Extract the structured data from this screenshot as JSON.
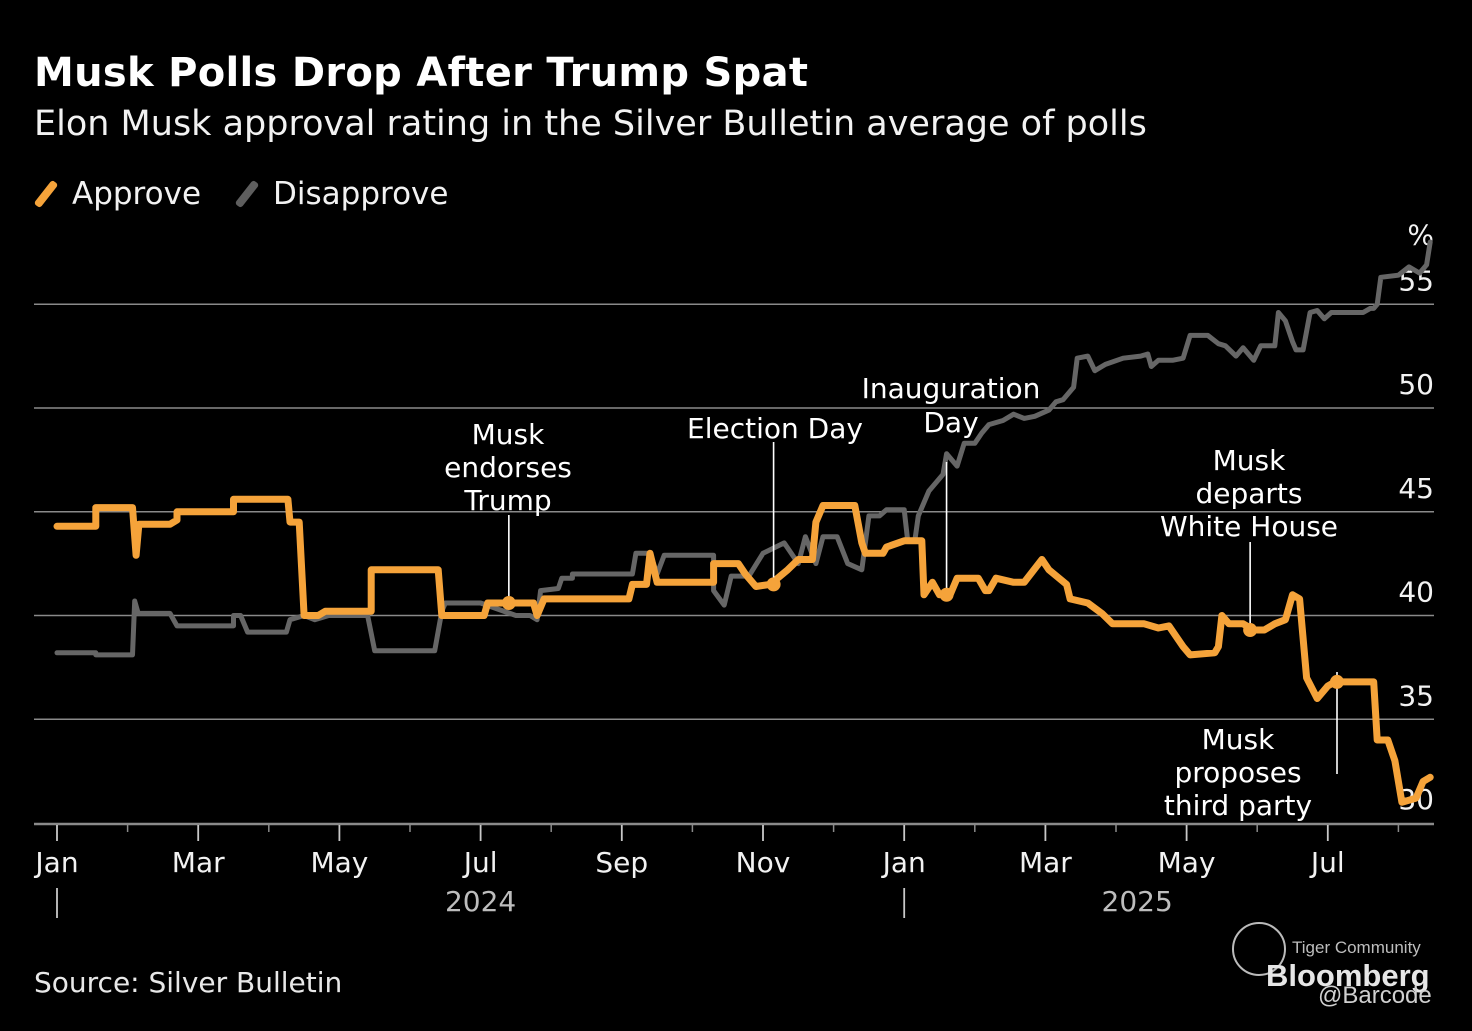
{
  "header": {
    "title": "Musk Polls Drop After Trump Spat",
    "subtitle": "Elon Musk approval rating in the Silver Bulletin average of polls"
  },
  "legend": [
    {
      "label": "Approve",
      "color": "#f5a33a",
      "icon": "slash-swatch"
    },
    {
      "label": "Disapprove",
      "color": "#666666",
      "icon": "slash-swatch"
    }
  ],
  "footer": {
    "source": "Source: Silver Bulletin",
    "watermark_community": "Tiger Community",
    "watermark_brand": "Bloomberg",
    "watermark_handle": "@Barcode"
  },
  "chart_data": {
    "type": "line",
    "title": "Musk Polls Drop After Trump Spat",
    "subtitle": "Elon Musk approval rating in the Silver Bulletin average of polls",
    "xlabel": "",
    "ylabel": "%",
    "unit_label": "%",
    "x_unit": "months since Jan 2024",
    "xlim": [
      0,
      19.5
    ],
    "ylim": [
      29,
      57
    ],
    "y_ticks": [
      30,
      35,
      40,
      45,
      50,
      55
    ],
    "grid": true,
    "legend_position": "top-left",
    "x_ticks": [
      {
        "m": 0,
        "label": "Jan"
      },
      {
        "m": 2,
        "label": "Mar"
      },
      {
        "m": 4,
        "label": "May"
      },
      {
        "m": 6,
        "label": "Jul"
      },
      {
        "m": 8,
        "label": "Sep"
      },
      {
        "m": 10,
        "label": "Nov"
      },
      {
        "m": 12,
        "label": "Jan"
      },
      {
        "m": 14,
        "label": "Mar"
      },
      {
        "m": 16,
        "label": "May"
      },
      {
        "m": 18,
        "label": "Jul"
      }
    ],
    "minor_ticks": [
      1,
      3,
      5,
      7,
      9,
      11,
      13,
      15,
      17,
      19
    ],
    "years": [
      {
        "m": 0,
        "label": "2024",
        "label_m": 6
      },
      {
        "m": 12,
        "label": "2025",
        "label_m": 15.3
      }
    ],
    "series": [
      {
        "name": "Approve",
        "color": "#f5a33a",
        "points": [
          [
            0.0,
            44.3
          ],
          [
            0.55,
            44.3
          ],
          [
            0.55,
            45.2
          ],
          [
            1.07,
            45.2
          ],
          [
            1.12,
            42.9
          ],
          [
            1.16,
            44.4
          ],
          [
            1.6,
            44.4
          ],
          [
            1.7,
            44.6
          ],
          [
            1.7,
            45.0
          ],
          [
            2.5,
            45.0
          ],
          [
            2.5,
            45.6
          ],
          [
            3.27,
            45.6
          ],
          [
            3.3,
            44.5
          ],
          [
            3.43,
            44.5
          ],
          [
            3.5,
            40.0
          ],
          [
            3.7,
            40.0
          ],
          [
            3.8,
            40.2
          ],
          [
            4.45,
            40.2
          ],
          [
            4.45,
            42.2
          ],
          [
            5.4,
            42.2
          ],
          [
            5.45,
            40.0
          ],
          [
            6.05,
            40.0
          ],
          [
            6.1,
            40.6
          ],
          [
            6.4,
            40.6
          ],
          [
            6.55,
            40.6
          ],
          [
            6.75,
            40.6
          ],
          [
            6.8,
            40.0
          ],
          [
            6.9,
            40.8
          ],
          [
            8.1,
            40.8
          ],
          [
            8.15,
            41.5
          ],
          [
            8.35,
            41.5
          ],
          [
            8.4,
            43.0
          ],
          [
            8.5,
            41.6
          ],
          [
            9.3,
            41.6
          ],
          [
            9.3,
            42.5
          ],
          [
            9.65,
            42.5
          ],
          [
            9.75,
            42.0
          ],
          [
            9.9,
            41.4
          ],
          [
            10.1,
            41.5
          ],
          [
            10.35,
            42.2
          ],
          [
            10.5,
            42.7
          ],
          [
            10.7,
            42.7
          ],
          [
            10.75,
            44.5
          ],
          [
            10.85,
            45.3
          ],
          [
            11.3,
            45.3
          ],
          [
            11.4,
            43.5
          ],
          [
            11.45,
            43.0
          ],
          [
            11.7,
            43.0
          ],
          [
            11.75,
            43.3
          ],
          [
            12.0,
            43.6
          ],
          [
            12.25,
            43.6
          ],
          [
            12.28,
            41.0
          ],
          [
            12.4,
            41.6
          ],
          [
            12.5,
            41.0
          ],
          [
            12.65,
            41.0
          ],
          [
            12.75,
            41.8
          ],
          [
            13.05,
            41.8
          ],
          [
            13.15,
            41.2
          ],
          [
            13.2,
            41.2
          ],
          [
            13.3,
            41.8
          ],
          [
            13.55,
            41.6
          ],
          [
            13.7,
            41.6
          ],
          [
            13.95,
            42.7
          ],
          [
            14.05,
            42.2
          ],
          [
            14.3,
            41.5
          ],
          [
            14.35,
            40.8
          ],
          [
            14.6,
            40.6
          ],
          [
            14.8,
            40.1
          ],
          [
            14.95,
            39.6
          ],
          [
            15.4,
            39.6
          ],
          [
            15.6,
            39.4
          ],
          [
            15.75,
            39.5
          ],
          [
            15.95,
            38.5
          ],
          [
            16.05,
            38.1
          ],
          [
            16.4,
            38.2
          ],
          [
            16.45,
            38.5
          ],
          [
            16.5,
            40.0
          ],
          [
            16.6,
            39.6
          ],
          [
            16.8,
            39.6
          ],
          [
            16.95,
            39.3
          ],
          [
            17.1,
            39.3
          ],
          [
            17.25,
            39.6
          ],
          [
            17.4,
            39.8
          ],
          [
            17.5,
            41.0
          ],
          [
            17.6,
            40.8
          ],
          [
            17.7,
            37.0
          ],
          [
            17.85,
            36.0
          ],
          [
            18.0,
            36.6
          ],
          [
            18.1,
            36.8
          ],
          [
            18.55,
            36.8
          ],
          [
            18.65,
            36.8
          ],
          [
            18.7,
            34.0
          ],
          [
            18.85,
            34.0
          ],
          [
            18.95,
            33.0
          ],
          [
            19.05,
            31.0
          ],
          [
            19.25,
            31.2
          ],
          [
            19.35,
            32.0
          ],
          [
            19.45,
            32.2
          ]
        ]
      },
      {
        "name": "Disapprove",
        "color": "#666666",
        "points": [
          [
            0.0,
            38.2
          ],
          [
            0.55,
            38.2
          ],
          [
            0.55,
            38.1
          ],
          [
            1.07,
            38.1
          ],
          [
            1.1,
            40.7
          ],
          [
            1.15,
            40.1
          ],
          [
            1.6,
            40.1
          ],
          [
            1.7,
            39.5
          ],
          [
            2.5,
            39.5
          ],
          [
            2.5,
            40.0
          ],
          [
            2.6,
            40.0
          ],
          [
            2.7,
            39.2
          ],
          [
            3.25,
            39.2
          ],
          [
            3.3,
            39.8
          ],
          [
            3.5,
            40.0
          ],
          [
            3.65,
            39.8
          ],
          [
            3.85,
            40.0
          ],
          [
            4.4,
            40.0
          ],
          [
            4.5,
            38.3
          ],
          [
            5.35,
            38.3
          ],
          [
            5.45,
            40.2
          ],
          [
            5.5,
            40.6
          ],
          [
            6.0,
            40.6
          ],
          [
            6.5,
            40.0
          ],
          [
            6.7,
            40.0
          ],
          [
            6.8,
            39.8
          ],
          [
            6.85,
            41.2
          ],
          [
            7.1,
            41.3
          ],
          [
            7.15,
            41.8
          ],
          [
            7.3,
            41.8
          ],
          [
            7.3,
            42.0
          ],
          [
            8.15,
            42.0
          ],
          [
            8.2,
            43.0
          ],
          [
            8.4,
            43.0
          ],
          [
            8.5,
            42.0
          ],
          [
            8.6,
            42.9
          ],
          [
            9.3,
            42.9
          ],
          [
            9.3,
            41.2
          ],
          [
            9.45,
            40.5
          ],
          [
            9.55,
            41.9
          ],
          [
            9.8,
            41.9
          ],
          [
            10.0,
            43.0
          ],
          [
            10.3,
            43.5
          ],
          [
            10.5,
            42.5
          ],
          [
            10.6,
            43.8
          ],
          [
            10.75,
            42.5
          ],
          [
            10.85,
            43.8
          ],
          [
            11.05,
            43.8
          ],
          [
            11.2,
            42.5
          ],
          [
            11.4,
            42.2
          ],
          [
            11.5,
            44.8
          ],
          [
            11.65,
            44.8
          ],
          [
            11.75,
            45.1
          ],
          [
            12.0,
            45.1
          ],
          [
            12.05,
            43.6
          ],
          [
            12.15,
            43.6
          ],
          [
            12.2,
            44.8
          ],
          [
            12.35,
            46.0
          ],
          [
            12.55,
            46.8
          ],
          [
            12.6,
            47.8
          ],
          [
            12.75,
            47.2
          ],
          [
            12.85,
            48.3
          ],
          [
            13.0,
            48.3
          ],
          [
            13.1,
            48.8
          ],
          [
            13.2,
            49.2
          ],
          [
            13.4,
            49.4
          ],
          [
            13.55,
            49.7
          ],
          [
            13.7,
            49.5
          ],
          [
            13.85,
            49.6
          ],
          [
            14.05,
            49.9
          ],
          [
            14.15,
            50.3
          ],
          [
            14.25,
            50.4
          ],
          [
            14.4,
            51.0
          ],
          [
            14.45,
            52.4
          ],
          [
            14.6,
            52.5
          ],
          [
            14.7,
            51.8
          ],
          [
            14.85,
            52.1
          ],
          [
            15.1,
            52.4
          ],
          [
            15.35,
            52.5
          ],
          [
            15.45,
            52.6
          ],
          [
            15.5,
            52.0
          ],
          [
            15.6,
            52.3
          ],
          [
            15.8,
            52.3
          ],
          [
            15.95,
            52.4
          ],
          [
            16.05,
            53.5
          ],
          [
            16.3,
            53.5
          ],
          [
            16.45,
            53.1
          ],
          [
            16.55,
            53.0
          ],
          [
            16.7,
            52.5
          ],
          [
            16.8,
            52.9
          ],
          [
            16.95,
            52.3
          ],
          [
            17.05,
            53.0
          ],
          [
            17.25,
            53.0
          ],
          [
            17.3,
            54.6
          ],
          [
            17.4,
            54.2
          ],
          [
            17.5,
            53.2
          ],
          [
            17.55,
            52.8
          ],
          [
            17.65,
            52.8
          ],
          [
            17.75,
            54.6
          ],
          [
            17.85,
            54.7
          ],
          [
            17.95,
            54.3
          ],
          [
            18.05,
            54.6
          ],
          [
            18.5,
            54.6
          ],
          [
            18.6,
            54.8
          ],
          [
            18.65,
            54.8
          ],
          [
            18.7,
            55.0
          ],
          [
            18.75,
            56.3
          ],
          [
            19.0,
            56.4
          ],
          [
            19.15,
            56.8
          ],
          [
            19.3,
            56.5
          ],
          [
            19.4,
            56.9
          ],
          [
            19.45,
            58.0
          ]
        ]
      }
    ],
    "annotations": [
      {
        "label_lines": [
          "Musk",
          "endorses",
          "Trump"
        ],
        "m": 6.4,
        "value": 40.6,
        "series": "Approve"
      },
      {
        "label_lines": [
          "Election Day"
        ],
        "m": 10.15,
        "value": 41.5,
        "series": "Approve"
      },
      {
        "label_lines": [
          "Inauguration",
          "Day"
        ],
        "m": 12.6,
        "value": 41.0,
        "series": "Approve"
      },
      {
        "label_lines": [
          "Musk",
          "departs",
          "White House"
        ],
        "m": 16.9,
        "value": 39.3,
        "series": "Approve"
      },
      {
        "label_lines": [
          "Musk",
          "proposes",
          "third party"
        ],
        "m": 18.1,
        "value": 36.8,
        "series": "Approve"
      }
    ]
  }
}
